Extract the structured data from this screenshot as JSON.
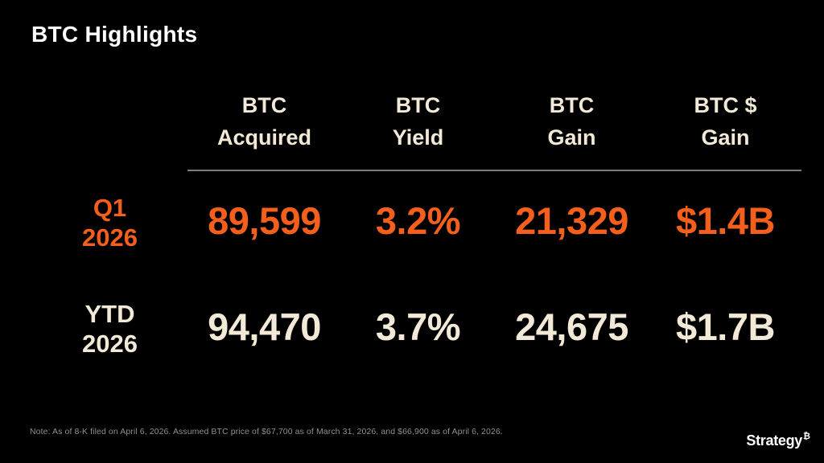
{
  "slide": {
    "title": "BTC Highlights",
    "footnote": "Note: As of 8-K filed on April 6, 2026. Assumed BTC price of $67,700 as of March 31, 2026, and $66,900 as of April 6, 2026.",
    "logo": {
      "wordmark": "Strategy",
      "bitcoin_symbol": "₿"
    }
  },
  "colors": {
    "background": "#000000",
    "title_white": "#FFFFFF",
    "header_cream": "#F2E9D6",
    "q1_row_orange": "#F4601C",
    "ytd_row_cream": "#F2E9D6",
    "divider_gray": "#7E7A74",
    "footnote_gray": "#8F8F8F"
  },
  "chart_data": {
    "type": "table",
    "title": "BTC Highlights",
    "columns": [
      "BTC Acquired",
      "BTC Yield",
      "BTC Gain",
      "BTC $ Gain"
    ],
    "column_lines": [
      [
        "BTC",
        "Acquired"
      ],
      [
        "BTC",
        "Yield"
      ],
      [
        "BTC",
        "Gain"
      ],
      [
        "BTC $",
        "Gain"
      ]
    ],
    "rows": [
      {
        "label": "Q1 2026",
        "label_lines": [
          "Q1",
          "2026"
        ],
        "values": [
          "89,599",
          "3.2%",
          "21,329",
          "$1.4B"
        ],
        "color": "#F4601C"
      },
      {
        "label": "YTD 2026",
        "label_lines": [
          "YTD",
          "2026"
        ],
        "values": [
          "94,470",
          "3.7%",
          "24,675",
          "$1.7B"
        ],
        "color": "#F2E9D6"
      }
    ],
    "note": "Note: As of 8-K filed on April 6, 2026. Assumed BTC price of $67,700 as of March 31, 2026, and $66,900 as of April 6, 2026."
  }
}
